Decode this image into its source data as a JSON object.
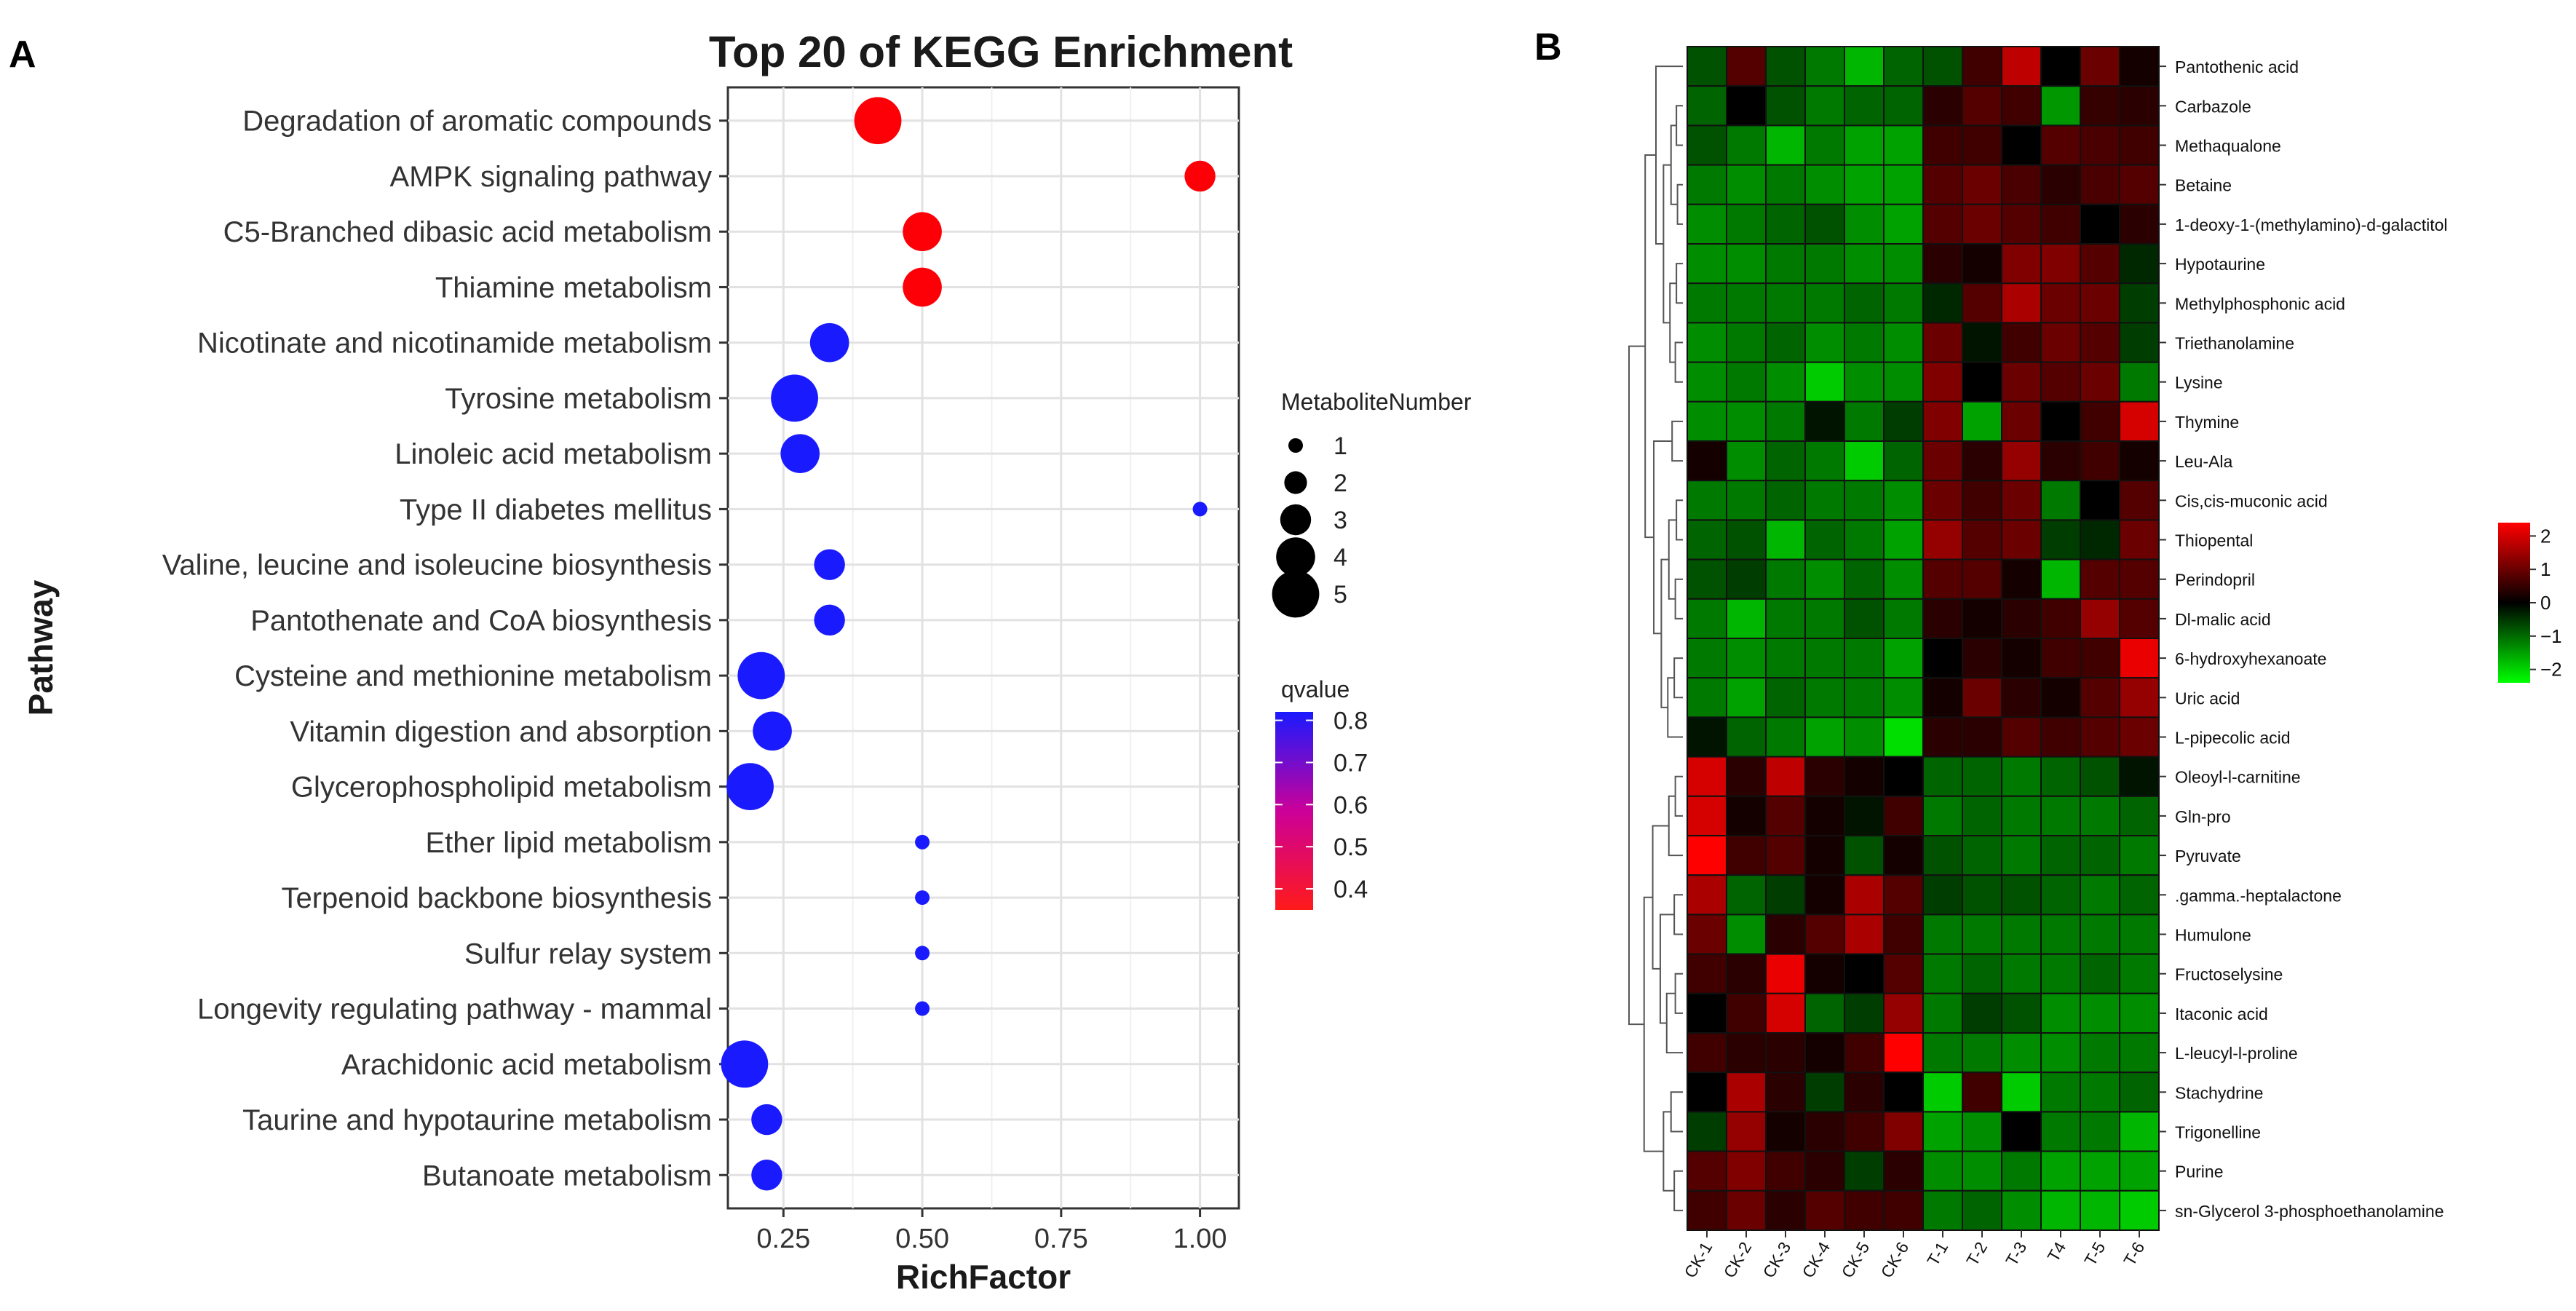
{
  "panel_a_label": "A",
  "panel_b_label": "B",
  "chart_data": [
    {
      "type": "scatter",
      "title": "Top 20 of KEGG Enrichment",
      "xlabel": "RichFactor",
      "ylabel": "Pathway",
      "xlim": [
        0.15,
        1.07
      ],
      "xticks": [
        0.25,
        0.5,
        0.75,
        1.0
      ],
      "xtick_labels": [
        "0.25",
        "0.50",
        "0.75",
        "1.00"
      ],
      "grid": true,
      "size_legend_title": "MetaboliteNumber",
      "size_legend_values": [
        1,
        2,
        3,
        4,
        5
      ],
      "size_legend_labels": [
        "1",
        "2",
        "3",
        "4",
        "5"
      ],
      "color_legend_title": "qvalue",
      "color_range": [
        0.35,
        0.82
      ],
      "color_low": "#ff0000",
      "color_high": "#1a1aff",
      "color_legend_ticks": [
        0.8,
        0.7,
        0.6,
        0.5,
        0.4
      ],
      "color_legend_labels": [
        "0.8",
        "0.7",
        "0.6",
        "0.5",
        "0.4"
      ],
      "points": [
        {
          "pathway": "Degradation of aromatic compounds",
          "richFactor": 0.42,
          "number": 5,
          "qvalue": 0.36
        },
        {
          "pathway": "AMPK signaling pathway",
          "richFactor": 1.0,
          "number": 3,
          "qvalue": 0.36
        },
        {
          "pathway": "C5-Branched dibasic acid metabolism",
          "richFactor": 0.5,
          "number": 4,
          "qvalue": 0.36
        },
        {
          "pathway": "Thiamine metabolism",
          "richFactor": 0.5,
          "number": 4,
          "qvalue": 0.36
        },
        {
          "pathway": "Nicotinate and nicotinamide metabolism",
          "richFactor": 0.333,
          "number": 4,
          "qvalue": 0.82
        },
        {
          "pathway": "Tyrosine metabolism",
          "richFactor": 0.27,
          "number": 5,
          "qvalue": 0.82
        },
        {
          "pathway": "Linoleic acid metabolism",
          "richFactor": 0.28,
          "number": 4,
          "qvalue": 0.82
        },
        {
          "pathway": "Type II diabetes mellitus",
          "richFactor": 1.0,
          "number": 1,
          "qvalue": 0.82
        },
        {
          "pathway": "Valine, leucine and isoleucine biosynthesis",
          "richFactor": 0.333,
          "number": 3,
          "qvalue": 0.82
        },
        {
          "pathway": "Pantothenate and CoA biosynthesis",
          "richFactor": 0.333,
          "number": 3,
          "qvalue": 0.82
        },
        {
          "pathway": "Cysteine and methionine metabolism",
          "richFactor": 0.21,
          "number": 5,
          "qvalue": 0.82
        },
        {
          "pathway": "Vitamin digestion and absorption",
          "richFactor": 0.23,
          "number": 4,
          "qvalue": 0.82
        },
        {
          "pathway": "Glycerophospholipid metabolism",
          "richFactor": 0.19,
          "number": 5,
          "qvalue": 0.82
        },
        {
          "pathway": "Ether lipid metabolism",
          "richFactor": 0.5,
          "number": 1,
          "qvalue": 0.82
        },
        {
          "pathway": "Terpenoid backbone biosynthesis",
          "richFactor": 0.5,
          "number": 1,
          "qvalue": 0.82
        },
        {
          "pathway": "Sulfur relay system",
          "richFactor": 0.5,
          "number": 1,
          "qvalue": 0.82
        },
        {
          "pathway": "Longevity regulating pathway - mammal",
          "richFactor": 0.5,
          "number": 1,
          "qvalue": 0.82
        },
        {
          "pathway": "Arachidonic acid metabolism",
          "richFactor": 0.18,
          "number": 5,
          "qvalue": 0.82
        },
        {
          "pathway": "Taurine and hypotaurine metabolism",
          "richFactor": 0.22,
          "number": 3,
          "qvalue": 0.82
        },
        {
          "pathway": "Butanoate metabolism",
          "richFactor": 0.22,
          "number": 3,
          "qvalue": 0.82
        }
      ]
    },
    {
      "type": "heatmap",
      "columns": [
        "CK-1",
        "CK-2",
        "CK-3",
        "CK-4",
        "CK-5",
        "CK-6",
        "T-1",
        "T-2",
        "T-3",
        "T4",
        "T-5",
        "T-6"
      ],
      "rows": [
        "Pantothenic acid",
        "Carbazole",
        "Methaqualone",
        "Betaine",
        "1-deoxy-1-(methylamino)-d-galactitol",
        "Hypotaurine",
        "Methylphosphonic acid",
        "Triethanolamine",
        "Lysine",
        "Thymine",
        "Leu-Ala",
        "Cis,cis-muconic acid",
        "Thiopental",
        "Perindopril",
        "Dl-malic acid",
        "6-hydroxyhexanoate",
        "Uric acid",
        "L-pipecolic acid",
        "Oleoyl-l-carnitine",
        "Gln-pro",
        "Pyruvate",
        ".gamma.-heptalactone",
        "Humulone",
        "Fructoselysine",
        "Itaconic acid",
        "L-leucyl-l-proline",
        "Stachydrine",
        "Trigonelline",
        "Purine",
        "sn-Glycerol 3-phosphoethanolamine"
      ],
      "values": [
        [
          -0.8,
          0.8,
          -0.8,
          -1.2,
          -1.8,
          -1.0,
          -0.8,
          0.6,
          1.8,
          0.0,
          1.0,
          0.2
        ],
        [
          -1.0,
          0.0,
          -0.8,
          -1.2,
          -1.0,
          -1.0,
          0.4,
          0.8,
          0.6,
          -1.5,
          0.5,
          0.4
        ],
        [
          -0.8,
          -1.2,
          -1.8,
          -1.2,
          -1.6,
          -1.6,
          0.6,
          0.6,
          0.0,
          0.8,
          0.7,
          0.6
        ],
        [
          -1.2,
          -1.4,
          -1.2,
          -1.4,
          -1.6,
          -1.6,
          0.8,
          1.0,
          0.7,
          0.4,
          0.7,
          0.8
        ],
        [
          -1.4,
          -1.2,
          -1.0,
          -0.8,
          -1.4,
          -1.6,
          0.8,
          1.0,
          0.8,
          0.6,
          0.0,
          0.4
        ],
        [
          -1.4,
          -1.4,
          -1.2,
          -1.2,
          -1.4,
          -1.4,
          0.4,
          0.2,
          1.2,
          1.2,
          0.8,
          -0.4
        ],
        [
          -1.2,
          -1.2,
          -1.2,
          -1.2,
          -1.0,
          -1.2,
          -0.4,
          0.8,
          1.6,
          1.0,
          1.0,
          -0.6
        ],
        [
          -1.4,
          -1.2,
          -1.0,
          -1.4,
          -1.2,
          -1.4,
          1.0,
          -0.2,
          0.6,
          1.0,
          0.8,
          -0.6
        ],
        [
          -1.4,
          -1.2,
          -1.4,
          -2.0,
          -1.4,
          -1.4,
          1.2,
          0.0,
          1.0,
          0.8,
          1.0,
          -1.2
        ],
        [
          -1.4,
          -1.4,
          -1.2,
          -0.2,
          -1.2,
          -0.6,
          1.2,
          -1.6,
          1.0,
          0.0,
          0.6,
          2.0
        ],
        [
          0.2,
          -1.4,
          -1.0,
          -1.2,
          -2.0,
          -1.0,
          1.0,
          0.4,
          1.4,
          0.4,
          0.6,
          0.2
        ],
        [
          -1.2,
          -1.2,
          -1.0,
          -1.2,
          -1.2,
          -1.4,
          1.0,
          0.6,
          1.0,
          -1.2,
          0.0,
          0.8
        ],
        [
          -1.0,
          -0.8,
          -1.8,
          -1.0,
          -1.2,
          -1.6,
          1.4,
          0.8,
          1.0,
          -0.6,
          -0.4,
          1.0
        ],
        [
          -0.8,
          -0.6,
          -1.2,
          -1.4,
          -1.0,
          -1.4,
          0.8,
          0.8,
          0.2,
          -1.8,
          0.8,
          0.8
        ],
        [
          -1.2,
          -1.8,
          -1.2,
          -1.2,
          -0.8,
          -1.2,
          0.4,
          0.2,
          0.4,
          0.6,
          1.4,
          0.8
        ],
        [
          -1.2,
          -1.4,
          -1.2,
          -1.2,
          -1.2,
          -1.6,
          0.0,
          0.4,
          0.2,
          0.6,
          0.6,
          2.2
        ],
        [
          -1.2,
          -1.6,
          -1.0,
          -1.2,
          -1.2,
          -1.4,
          0.2,
          1.0,
          0.4,
          0.2,
          0.8,
          1.4
        ],
        [
          -0.2,
          -1.0,
          -1.2,
          -1.6,
          -1.4,
          -2.2,
          0.4,
          0.4,
          0.8,
          0.6,
          0.8,
          1.0
        ],
        [
          2.0,
          0.4,
          1.8,
          0.4,
          0.2,
          0.0,
          -1.0,
          -1.0,
          -1.2,
          -1.0,
          -0.8,
          -0.2
        ],
        [
          2.0,
          0.2,
          0.8,
          0.2,
          -0.2,
          0.6,
          -1.2,
          -1.0,
          -1.2,
          -1.2,
          -1.2,
          -1.0
        ],
        [
          2.4,
          0.6,
          0.8,
          0.2,
          -0.8,
          0.2,
          -0.8,
          -1.0,
          -1.2,
          -1.0,
          -1.0,
          -1.2
        ],
        [
          1.6,
          -1.0,
          -0.6,
          0.2,
          1.6,
          0.8,
          -0.6,
          -0.8,
          -0.8,
          -1.0,
          -1.2,
          -1.0
        ],
        [
          1.0,
          -1.4,
          0.4,
          0.8,
          1.6,
          0.6,
          -1.2,
          -1.2,
          -1.2,
          -1.2,
          -1.2,
          -1.2
        ],
        [
          0.6,
          0.4,
          2.2,
          0.2,
          0.0,
          0.8,
          -1.2,
          -1.0,
          -1.2,
          -1.2,
          -1.0,
          -1.2
        ],
        [
          0.0,
          0.6,
          2.0,
          -1.0,
          -0.6,
          1.4,
          -1.2,
          -0.6,
          -0.8,
          -1.4,
          -1.4,
          -1.4
        ],
        [
          0.6,
          0.4,
          0.4,
          0.2,
          0.6,
          2.4,
          -1.2,
          -1.2,
          -1.4,
          -1.4,
          -1.2,
          -1.2
        ],
        [
          0.0,
          1.6,
          0.4,
          -0.6,
          0.4,
          0.0,
          -2.0,
          0.6,
          -2.0,
          -1.2,
          -1.2,
          -1.0
        ],
        [
          -0.6,
          1.4,
          0.2,
          0.4,
          0.6,
          1.2,
          -1.6,
          -1.4,
          0.0,
          -1.2,
          -1.2,
          -1.8
        ],
        [
          0.8,
          1.2,
          0.6,
          0.4,
          -0.6,
          0.4,
          -1.4,
          -1.4,
          -1.2,
          -1.6,
          -1.6,
          -1.6
        ],
        [
          0.6,
          1.0,
          0.4,
          0.8,
          0.6,
          0.6,
          -1.2,
          -1.0,
          -1.4,
          -1.8,
          -1.8,
          -2.0
        ]
      ],
      "color_scale": {
        "min": -2.4,
        "max": 2.4,
        "low": "#00ff00",
        "mid": "#000000",
        "high": "#ff0000"
      },
      "legend_ticks": [
        2,
        1,
        0,
        -1,
        -2
      ],
      "legend_labels": [
        "2",
        "1",
        "0",
        "−1",
        "−2"
      ],
      "dendrogram": "hierarchical clustering tree on rows (left side)"
    }
  ]
}
